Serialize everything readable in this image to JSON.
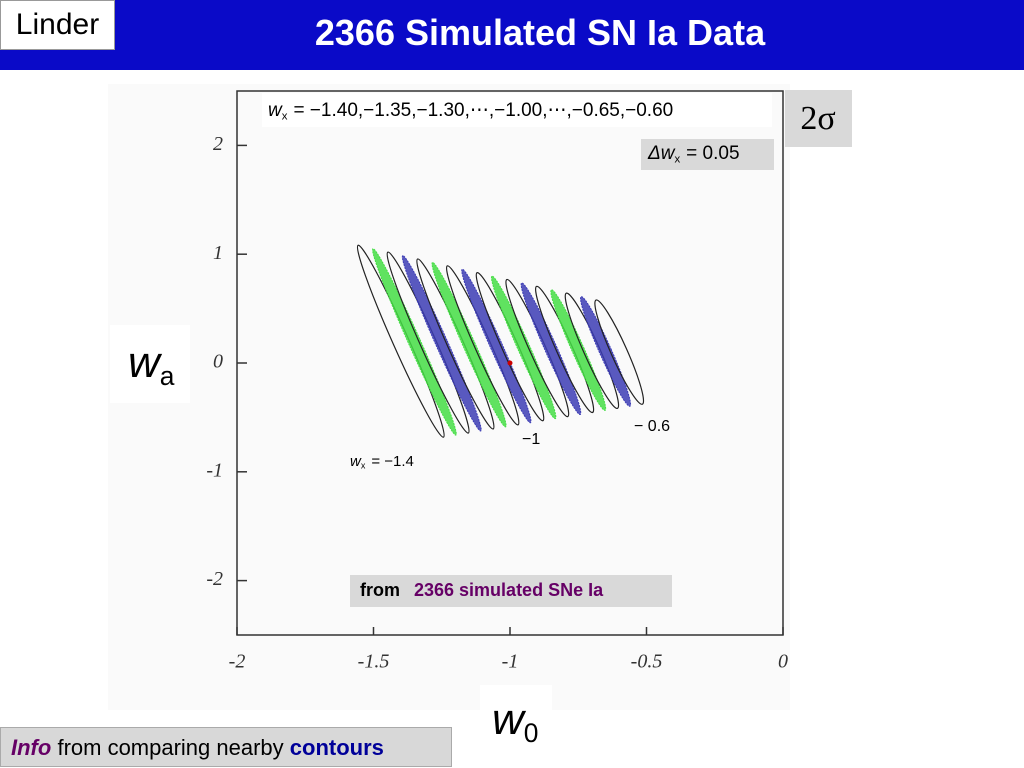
{
  "header": {
    "author": "Linder",
    "title": "2366 Simulated SN Ia Data"
  },
  "chart_data": {
    "type": "contour",
    "xlim": [
      -2,
      0
    ],
    "xticks": [
      -2,
      -1.5,
      -1,
      -0.5,
      0
    ],
    "ylim": [
      -2.5,
      2.5
    ],
    "yticks": [
      -2,
      -1,
      0,
      1,
      2
    ],
    "x_label": {
      "main": "w",
      "sub": "0"
    },
    "y_label": {
      "main": "w",
      "sub": "a"
    },
    "contour_wx": [
      -1.4,
      -1.35,
      -1.3,
      -1.25,
      -1.2,
      -1.15,
      -1.1,
      -1.05,
      -1.0,
      -0.95,
      -0.9,
      -0.85,
      -0.8,
      -0.75,
      -0.7,
      -0.65,
      -0.6
    ],
    "contour_colors": [
      "#222222",
      "#44dd44",
      "#222222",
      "#3c3cb4"
    ],
    "fiducial": {
      "x": -1,
      "y": 0,
      "color": "#cc0000"
    },
    "sigma_label": "2σ",
    "annotations": {
      "range": {
        "main": "w",
        "sub": "x",
        "text": "= −1.40,−1.35,−1.30,⋯,−1.00,⋯,−0.65,−0.60"
      },
      "step": {
        "main": "Δw",
        "sub": "x",
        "text": "= 0.05"
      },
      "left": {
        "main": "w",
        "sub": "x",
        "text": "= −1.4"
      },
      "mid": "−1",
      "right": "− 0.6"
    },
    "source": {
      "prefix": "from",
      "text": "2366 simulated SNe Ia"
    }
  },
  "footer": {
    "lead": "Info",
    "text": "from comparing nearby",
    "emph": "contours"
  }
}
